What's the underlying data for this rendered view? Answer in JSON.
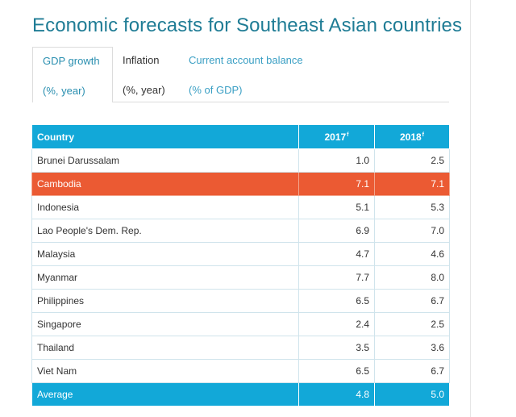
{
  "title": "Economic forecasts for Southeast Asian countries",
  "tabs": [
    {
      "label": "GDP growth",
      "unit": "(%, year)"
    },
    {
      "label": "Inflation",
      "unit": "(%, year)"
    },
    {
      "label": "Current account balance",
      "unit": "(% of GDP)"
    }
  ],
  "table": {
    "headers": {
      "country": "Country",
      "y2017": "2017",
      "y2017_sup": "f",
      "y2018": "2018",
      "y2018_sup": "f"
    },
    "rows": [
      {
        "country": "Brunei Darussalam",
        "y2017": "1.0",
        "y2018": "2.5"
      },
      {
        "country": "Cambodia",
        "y2017": "7.1",
        "y2018": "7.1"
      },
      {
        "country": "Indonesia",
        "y2017": "5.1",
        "y2018": "5.3"
      },
      {
        "country": "Lao People's Dem. Rep.",
        "y2017": "6.9",
        "y2018": "7.0"
      },
      {
        "country": "Malaysia",
        "y2017": "4.7",
        "y2018": "4.6"
      },
      {
        "country": "Myanmar",
        "y2017": "7.7",
        "y2018": "8.0"
      },
      {
        "country": "Philippines",
        "y2017": "6.5",
        "y2018": "6.7"
      },
      {
        "country": "Singapore",
        "y2017": "2.4",
        "y2018": "2.5"
      },
      {
        "country": "Thailand",
        "y2017": "3.5",
        "y2018": "3.6"
      },
      {
        "country": "Viet Nam",
        "y2017": "6.5",
        "y2018": "6.7"
      }
    ],
    "average": {
      "country": "Average",
      "y2017": "4.8",
      "y2018": "5.0"
    }
  },
  "colors": {
    "title": "#1f7c95",
    "header_bg": "#12a8d8",
    "highlight_bg": "#eb5a33",
    "tab_active": "#2a8fb0",
    "tab_link": "#3a9fc4"
  }
}
